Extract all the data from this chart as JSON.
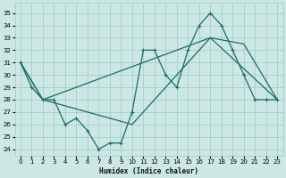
{
  "xlabel": "Humidex (Indice chaleur)",
  "xlim": [
    -0.5,
    23.5
  ],
  "ylim": [
    23.5,
    35.8
  ],
  "yticks": [
    24,
    25,
    26,
    27,
    28,
    29,
    30,
    31,
    32,
    33,
    34,
    35
  ],
  "xticks": [
    0,
    1,
    2,
    3,
    4,
    5,
    6,
    7,
    8,
    9,
    10,
    11,
    12,
    13,
    14,
    15,
    16,
    17,
    18,
    19,
    20,
    21,
    22,
    23
  ],
  "bg_color": "#cce8e5",
  "grid_color": "#a0c8c4",
  "line_color": "#1a6b6a",
  "line1_x": [
    0,
    1,
    2,
    3,
    4,
    5,
    6,
    7,
    8,
    9,
    10,
    11,
    12,
    13,
    14,
    15,
    16,
    17,
    18,
    19,
    20,
    21,
    22,
    23
  ],
  "line1_y": [
    31,
    29,
    28,
    28,
    26,
    26.5,
    25.5,
    24,
    24.5,
    24.5,
    27,
    32,
    32,
    30,
    29,
    32,
    34,
    35,
    34,
    32,
    30,
    28,
    28,
    28
  ],
  "line2_x": [
    0,
    2,
    17,
    23
  ],
  "line2_y": [
    31,
    28,
    33,
    28
  ],
  "line3_x": [
    0,
    2,
    10,
    17,
    20,
    23
  ],
  "line3_y": [
    31,
    28,
    26,
    33,
    32.5,
    28
  ]
}
